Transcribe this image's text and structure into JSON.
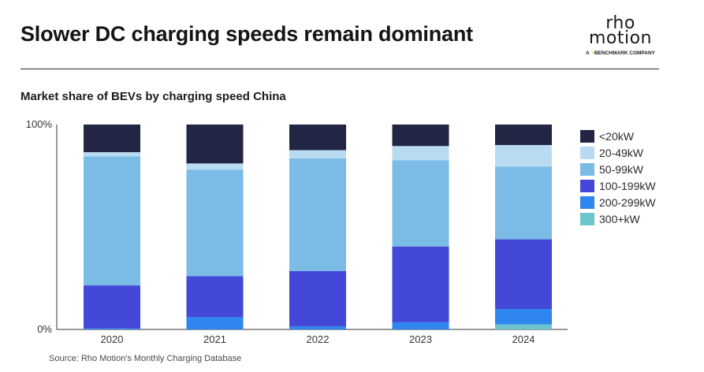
{
  "header": {
    "title": "Slower DC charging speeds remain dominant",
    "logo_line1": "rho",
    "logo_line2": "motion",
    "logo_tag_prefix": "A ",
    "logo_tag_bolt": "⚡",
    "logo_tag_suffix": "BENCHMARK COMPANY"
  },
  "source": "Source: Rho Motion's Monthly Charging Database",
  "colors": {
    "<20kW": "#232544",
    "20-49kW": "#b9dbf1",
    "50-99kW": "#7bbce6",
    "100-199kW": "#4448d8",
    "200-299kW": "#2f86ee",
    "300+kW": "#6cc4cf",
    "axis": "#333333"
  },
  "chart_data": {
    "type": "bar",
    "stacked": true,
    "title": "Market share of BEVs by charging speed China",
    "xlabel": "",
    "ylabel": "",
    "ylim": [
      0,
      100
    ],
    "y_tick_labels": [
      "0%",
      "100%"
    ],
    "categories": [
      "2020",
      "2021",
      "2022",
      "2023",
      "2024"
    ],
    "legend_position": "right",
    "series": [
      {
        "name": "300+kW",
        "values": [
          0,
          0,
          0,
          0,
          2.5
        ]
      },
      {
        "name": "200-299kW",
        "values": [
          0.5,
          6,
          1.5,
          3.5,
          7.5
        ]
      },
      {
        "name": "100-199kW",
        "values": [
          21,
          20,
          27,
          37,
          34
        ]
      },
      {
        "name": "50-99kW",
        "values": [
          63,
          52,
          55,
          42,
          35.5
        ]
      },
      {
        "name": "20-49kW",
        "values": [
          2,
          3,
          4,
          7,
          10.5
        ]
      },
      {
        "name": "<20kW",
        "values": [
          13.5,
          19,
          12.5,
          10.5,
          10
        ]
      }
    ],
    "legend_order": [
      "<20kW",
      "20-49kW",
      "50-99kW",
      "100-199kW",
      "200-299kW",
      "300+kW"
    ]
  }
}
